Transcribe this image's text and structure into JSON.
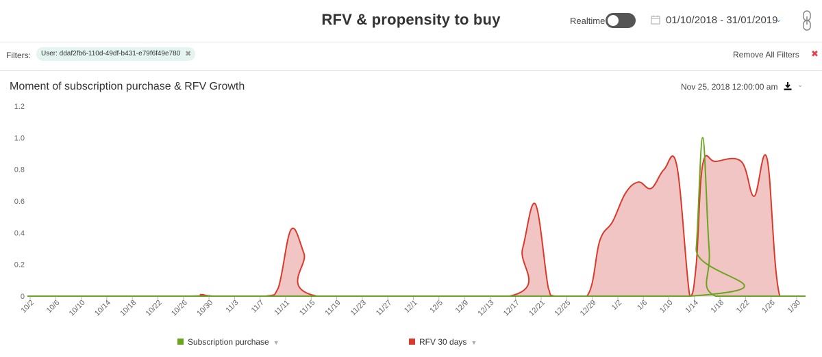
{
  "header": {
    "title": "RFV & propensity to buy",
    "realtime_label": "Realtime",
    "date_range": "01/10/2018 - 31/01/2019",
    "realtime_on": false
  },
  "filters": {
    "label": "Filters:",
    "chips": [
      {
        "label": "User: ddaf2fb6-110d-49df-b431-e79f6f49e780"
      }
    ],
    "remove_all": "Remove All Filters"
  },
  "panel": {
    "title": "Moment of subscription purchase & RFV Growth",
    "date": "Nov 25, 2018 12:00:00 am"
  },
  "colors": {
    "subscription": "#6aa51f",
    "rfv_line": "#d93a2b",
    "rfv_fill": "#eeb7b5",
    "toggle": "#555555",
    "remove_x": "#e0404a"
  },
  "chart_data": {
    "type": "area",
    "x_unit": "date",
    "x_start": "2018-10-01",
    "x_end": "2019-01-30",
    "xticks": [
      "10/2",
      "10/6",
      "10/10",
      "10/14",
      "10/18",
      "10/22",
      "10/26",
      "10/30",
      "11/3",
      "11/7",
      "11/11",
      "11/15",
      "11/19",
      "11/23",
      "11/27",
      "12/1",
      "12/5",
      "12/9",
      "12/13",
      "12/17",
      "12/21",
      "12/25",
      "12/29",
      "1/2",
      "1/6",
      "1/10",
      "1/14",
      "1/18",
      "1/22",
      "1/26",
      "1/30"
    ],
    "yticks": [
      "0",
      "0.2",
      "0.4",
      "0.6",
      "0.8",
      "1.0",
      "1.2"
    ],
    "ylim": [
      0,
      1.2
    ],
    "grid": false,
    "legend_position": "bottom",
    "series": [
      {
        "name": "Subscription purchase",
        "color": "#6aa51f",
        "points": [
          [
            "2018-10-01",
            0
          ],
          [
            "2019-01-12",
            0
          ],
          [
            "2019-01-13",
            0.3
          ],
          [
            "2019-01-14",
            1.0
          ],
          [
            "2019-01-15",
            0.3
          ],
          [
            "2019-01-16",
            0
          ],
          [
            "2019-01-30",
            0
          ]
        ]
      },
      {
        "name": "RFV 30 days",
        "color": "#d93a2b",
        "points": [
          [
            "2018-10-01",
            0
          ],
          [
            "2018-10-26",
            0
          ],
          [
            "2018-10-28",
            0.01
          ],
          [
            "2018-10-30",
            0
          ],
          [
            "2018-11-07",
            0
          ],
          [
            "2018-11-09",
            0.05
          ],
          [
            "2018-11-11",
            0.42
          ],
          [
            "2018-11-13",
            0.27
          ],
          [
            "2018-11-15",
            0
          ],
          [
            "2018-12-15",
            0
          ],
          [
            "2018-12-17",
            0.3
          ],
          [
            "2018-12-19",
            0.58
          ],
          [
            "2018-12-21",
            0.05
          ],
          [
            "2018-12-22",
            0
          ],
          [
            "2018-12-27",
            0
          ],
          [
            "2018-12-29",
            0.35
          ],
          [
            "2018-12-31",
            0.47
          ],
          [
            "2019-01-02",
            0.65
          ],
          [
            "2019-01-04",
            0.72
          ],
          [
            "2019-01-06",
            0.68
          ],
          [
            "2019-01-08",
            0.8
          ],
          [
            "2019-01-10",
            0.82
          ],
          [
            "2019-01-12",
            0
          ],
          [
            "2019-01-13",
            0.2
          ],
          [
            "2019-01-14",
            0.83
          ],
          [
            "2019-01-16",
            0.85
          ],
          [
            "2019-01-20",
            0.85
          ],
          [
            "2019-01-22",
            0.63
          ],
          [
            "2019-01-24",
            0.87
          ],
          [
            "2019-01-26",
            0
          ],
          [
            "2019-01-30",
            0
          ]
        ]
      }
    ]
  }
}
